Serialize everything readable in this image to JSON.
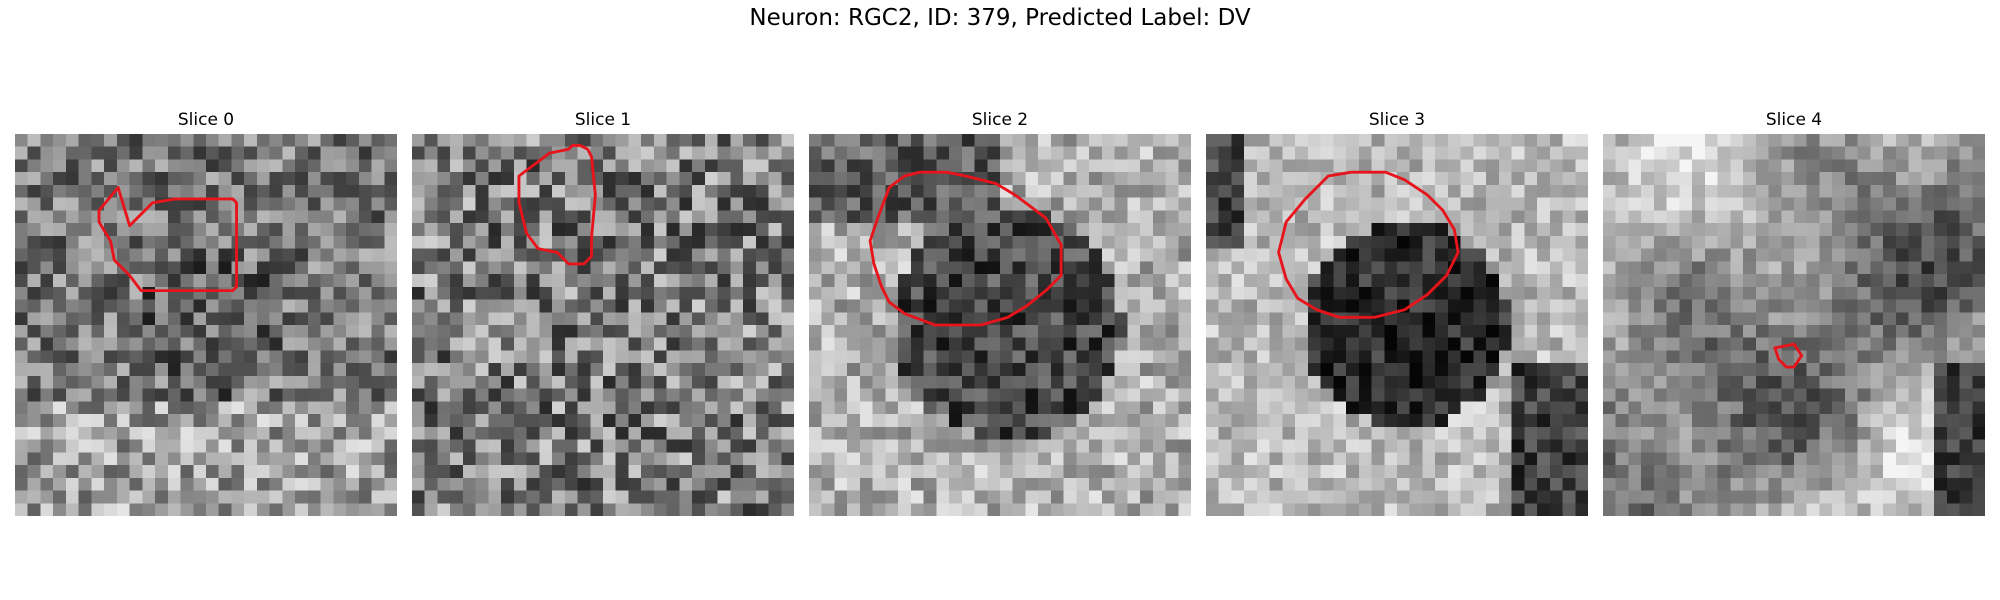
{
  "figure": {
    "suptitle": "Neuron: RGC2, ID: 379, Predicted Label: DV"
  },
  "panels": [
    {
      "title": "Slice 0",
      "pattern": "noise-bright-bottom",
      "roi": [
        [
          30,
          24
        ],
        [
          36,
          18
        ],
        [
          42,
          17
        ],
        [
          57,
          17
        ],
        [
          58,
          18
        ],
        [
          58,
          40
        ],
        [
          57,
          41
        ],
        [
          33,
          41
        ],
        [
          30,
          37
        ],
        [
          26,
          33
        ],
        [
          25,
          28
        ],
        [
          22,
          23
        ],
        [
          22,
          20
        ],
        [
          27,
          14
        ]
      ]
    },
    {
      "title": "Slice 1",
      "pattern": "noise",
      "roi": [
        [
          28,
          11
        ],
        [
          36,
          5
        ],
        [
          41,
          4
        ],
        [
          42,
          3
        ],
        [
          44,
          3
        ],
        [
          46,
          4
        ],
        [
          47,
          6
        ],
        [
          48,
          16
        ],
        [
          47,
          27
        ],
        [
          47,
          32
        ],
        [
          45,
          34
        ],
        [
          41,
          34
        ],
        [
          38,
          31
        ],
        [
          33,
          30
        ],
        [
          30,
          26
        ],
        [
          29,
          22
        ],
        [
          28,
          18
        ]
      ]
    },
    {
      "title": "Slice 2",
      "pattern": "dark-disc",
      "roi": [
        [
          21,
          14
        ],
        [
          25,
          11
        ],
        [
          29,
          10
        ],
        [
          36,
          10
        ],
        [
          41,
          11
        ],
        [
          49,
          13
        ],
        [
          54,
          16
        ],
        [
          58,
          19
        ],
        [
          62,
          22
        ],
        [
          66,
          29
        ],
        [
          66,
          37
        ],
        [
          62,
          41
        ],
        [
          57,
          45
        ],
        [
          52,
          48
        ],
        [
          45,
          50
        ],
        [
          33,
          50
        ],
        [
          25,
          47
        ],
        [
          21,
          44
        ],
        [
          19,
          40
        ],
        [
          17,
          34
        ],
        [
          16,
          28
        ],
        [
          18,
          22
        ]
      ]
    },
    {
      "title": "Slice 3",
      "pattern": "dark-disc-bright",
      "roi": [
        [
          32,
          11
        ],
        [
          38,
          10
        ],
        [
          47,
          10
        ],
        [
          52,
          12
        ],
        [
          58,
          16
        ],
        [
          62,
          20
        ],
        [
          65,
          25
        ],
        [
          66,
          31
        ],
        [
          63,
          37
        ],
        [
          58,
          42
        ],
        [
          52,
          46
        ],
        [
          44,
          48
        ],
        [
          35,
          48
        ],
        [
          29,
          46
        ],
        [
          24,
          43
        ],
        [
          21,
          38
        ],
        [
          19,
          31
        ],
        [
          21,
          23
        ],
        [
          26,
          17
        ]
      ]
    },
    {
      "title": "Slice 4",
      "pattern": "blotchy",
      "roi": [
        [
          45,
          56
        ],
        [
          50,
          55
        ],
        [
          52,
          58
        ],
        [
          50,
          61
        ],
        [
          48,
          61
        ],
        [
          46,
          59
        ]
      ]
    }
  ]
}
